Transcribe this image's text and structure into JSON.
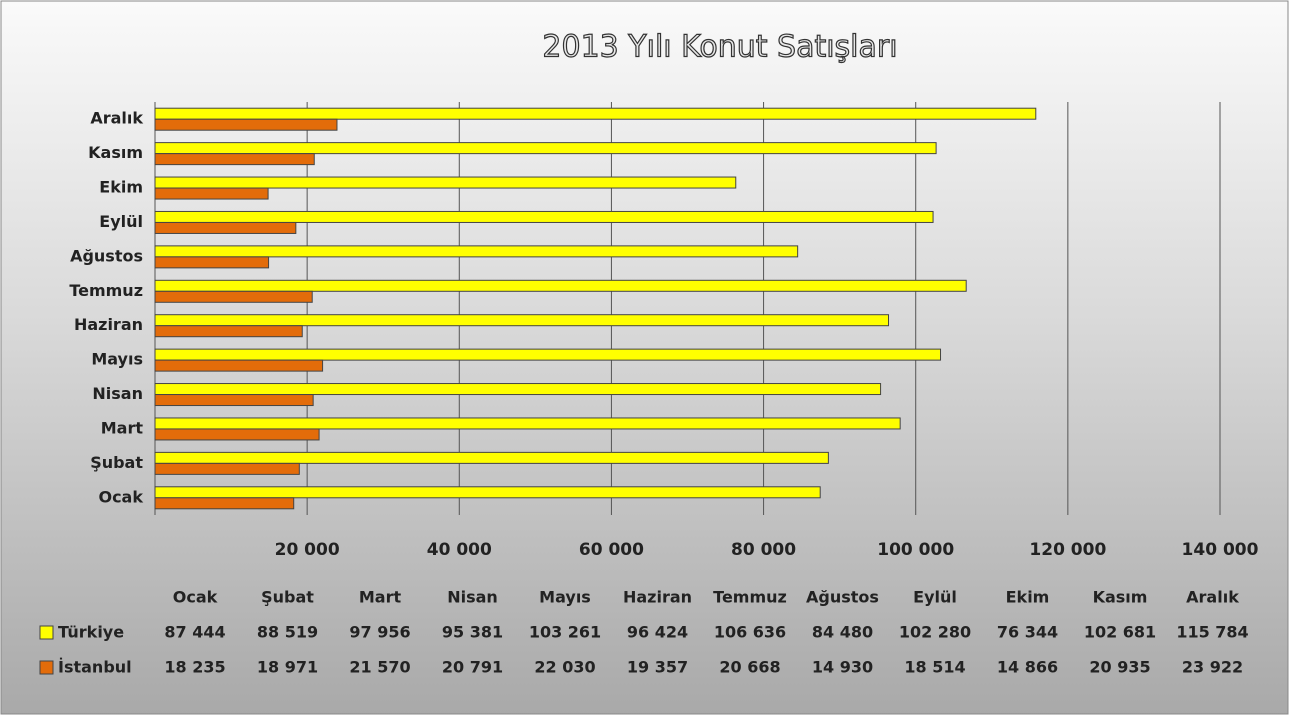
{
  "chart_data": {
    "type": "bar",
    "orientation": "horizontal",
    "title": "2013 Yılı Konut Satışları",
    "categories": [
      "Ocak",
      "Şubat",
      "Mart",
      "Nisan",
      "Mayıs",
      "Haziran",
      "Temmuz",
      "Ağustos",
      "Eylül",
      "Ekim",
      "Kasım",
      "Aralık"
    ],
    "series": [
      {
        "name": "Türkiye",
        "color": "#ffff00",
        "values": [
          87444,
          88519,
          97956,
          95381,
          103261,
          96424,
          106636,
          84480,
          102280,
          76344,
          102681,
          115784
        ],
        "value_labels": [
          "87 444",
          "88 519",
          "97 956",
          "95 381",
          "103 261",
          "96 424",
          "106 636",
          "84 480",
          "102 280",
          "76 344",
          "102 681",
          "115 784"
        ]
      },
      {
        "name": "İstanbul",
        "color": "#e36c0a",
        "values": [
          18235,
          18971,
          21570,
          20791,
          22030,
          19357,
          20668,
          14930,
          18514,
          14866,
          20935,
          23922
        ],
        "value_labels": [
          "18 235",
          "18 971",
          "21 570",
          "20 791",
          "22 030",
          "19 357",
          "20 668",
          "14 930",
          "18 514",
          "14 866",
          "20 935",
          "23 922"
        ]
      }
    ],
    "xlim": [
      0,
      140000
    ],
    "xticks": [
      {
        "value": 20000,
        "label": "20 000"
      },
      {
        "value": 40000,
        "label": "40 000"
      },
      {
        "value": 60000,
        "label": "60 000"
      },
      {
        "value": 80000,
        "label": "80 000"
      },
      {
        "value": 100000,
        "label": "100 000"
      },
      {
        "value": 120000,
        "label": "120 000"
      },
      {
        "value": 140000,
        "label": "140 000"
      }
    ],
    "grid": true
  }
}
